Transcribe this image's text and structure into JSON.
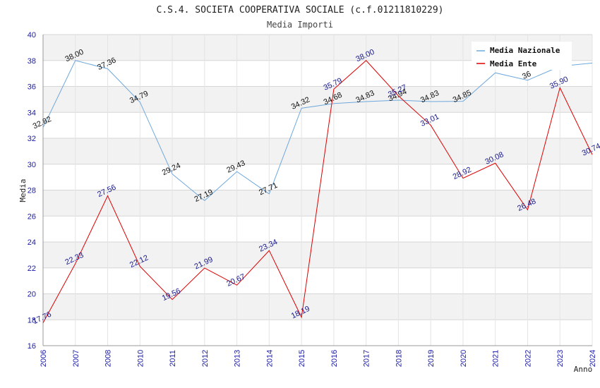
{
  "chart_data": {
    "type": "line",
    "title": "C.S.4. SOCIETA COOPERATIVA SOCIALE (c.f.01211810229)",
    "subtitle": "Media Importi",
    "xlabel": "Anno",
    "ylabel": "Media",
    "categories": [
      "2006",
      "2007",
      "2008",
      "2010",
      "2011",
      "2012",
      "2013",
      "2014",
      "2015",
      "2016",
      "2017",
      "2018",
      "2019",
      "2020",
      "2021",
      "2022",
      "2023",
      "2024"
    ],
    "ylim": [
      16,
      40
    ],
    "yticks": [
      "16",
      "18",
      "20",
      "22",
      "24",
      "26",
      "28",
      "30",
      "32",
      "34",
      "36",
      "38",
      "40"
    ],
    "grid": true,
    "legend_position": "top-right",
    "series": [
      {
        "name": "Media Nazionale",
        "color": "#6fa8dc",
        "values": [
          32.82,
          38.0,
          37.36,
          34.79,
          29.24,
          27.19,
          29.43,
          27.71,
          34.32,
          34.68,
          34.83,
          34.94,
          34.83,
          34.85,
          37.05,
          36.48,
          37.55,
          37.8
        ],
        "labels": [
          "32.82",
          "38.00",
          "37.36",
          "34.79",
          "29.24",
          "27.19",
          "29.43",
          "27.71",
          "34.32",
          "34.68",
          "34.83",
          "34.94",
          "34.83",
          "34.85",
          "",
          "36",
          "",
          ""
        ]
      },
      {
        "name": "Media Ente",
        "color": "#e00000",
        "values": [
          17.76,
          22.33,
          27.56,
          22.12,
          19.56,
          21.99,
          20.67,
          23.34,
          18.19,
          35.79,
          38.0,
          35.27,
          33.01,
          28.92,
          30.08,
          26.48,
          35.9,
          30.74
        ],
        "labels": [
          "17.76",
          "22.33",
          "27.56",
          "22.12",
          "19.56",
          "21.99",
          "20.67",
          "23.34",
          "18.19",
          "35.79",
          "38.00",
          "35.27",
          "33.01",
          "28.92",
          "30.08",
          "26.48",
          "35.90",
          "30.74"
        ]
      }
    ]
  }
}
